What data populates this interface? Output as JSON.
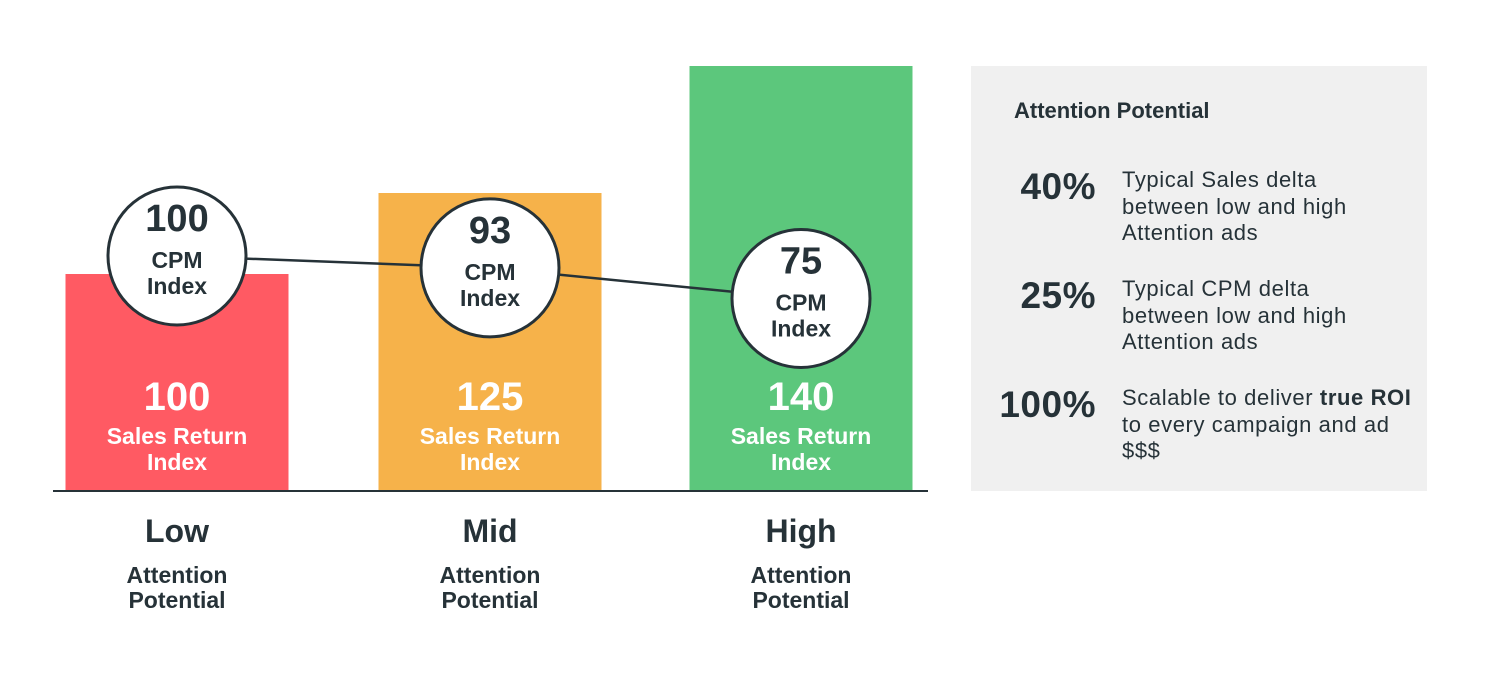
{
  "chart_data": {
    "type": "bar",
    "categories": [
      "Low",
      "Mid",
      "High"
    ],
    "category_sublabels": [
      "Attention Potential",
      "Attention Potential",
      "Attention Potential"
    ],
    "series": [
      {
        "name": "Sales Return Index",
        "values": [
          100,
          125,
          140
        ],
        "colors": [
          "#ff5a63",
          "#f6b24a",
          "#5cc77c"
        ],
        "label_lines": [
          "Sales Return",
          "Index"
        ]
      },
      {
        "name": "CPM Index",
        "type": "line",
        "values": [
          100,
          93,
          75
        ],
        "label_lines": [
          "CPM",
          "Index"
        ]
      }
    ],
    "legend": "none",
    "grid": false
  },
  "panel": {
    "title": "Attention Potential",
    "stats": [
      {
        "value": "40%",
        "desc_lines": [
          "Typical Sales delta",
          "between low and high",
          "Attention ads"
        ]
      },
      {
        "value": "25%",
        "desc_lines": [
          "Typical CPM delta",
          "between low and high",
          "Attention ads"
        ]
      },
      {
        "value": "100%",
        "desc_parts": [
          {
            "text": "Scalable to deliver ",
            "bold": false
          },
          {
            "text": "true ROI",
            "bold": true
          },
          {
            "text": " to every campaign and ad $$$",
            "bold": false
          }
        ]
      }
    ]
  },
  "colors": {
    "text": "#263238",
    "panel_bg": "#f0f0f0",
    "white": "#ffffff"
  }
}
